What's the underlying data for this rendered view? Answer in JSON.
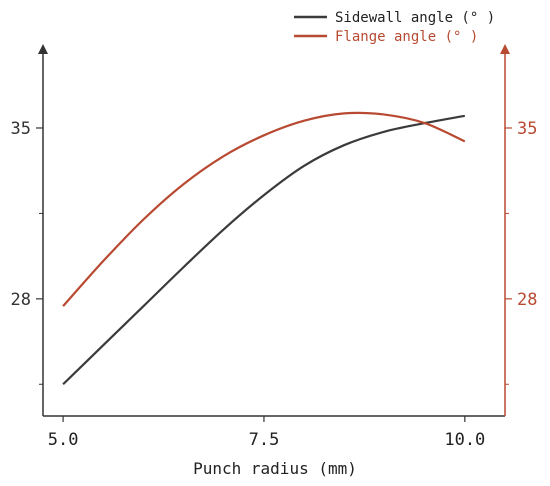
{
  "chart_data": {
    "type": "line",
    "xlabel": "Punch radius (mm)",
    "x_ticks": [
      "5.0",
      "7.5",
      "10.0"
    ],
    "x_tick_values": [
      5.0,
      7.5,
      10.0
    ],
    "xlim": [
      4.75,
      10.5
    ],
    "left_axis": {
      "ylim": [
        23.2,
        38.4
      ],
      "major_ticks": [
        28,
        35
      ],
      "major_tick_labels": [
        "28",
        "35"
      ],
      "minor_ticks": [
        24.5,
        31.5
      ],
      "color": "#333333"
    },
    "right_axis": {
      "ylim": [
        23.2,
        38.4
      ],
      "major_ticks": [
        28,
        35
      ],
      "major_tick_labels": [
        "28",
        "35"
      ],
      "minor_ticks": [
        24.5,
        31.5
      ],
      "color": "#b84a32"
    },
    "legend_position": "top-right",
    "series": [
      {
        "name": "Sidewall angle (° )",
        "axis": "left",
        "color": "#3b3b3b",
        "x": [
          5.0,
          5.5,
          6.0,
          6.5,
          7.0,
          7.5,
          8.0,
          8.5,
          9.0,
          9.5,
          10.0
        ],
        "y": [
          24.5,
          26.1,
          27.7,
          29.3,
          30.85,
          32.25,
          33.45,
          34.3,
          34.85,
          35.2,
          35.5
        ]
      },
      {
        "name": "Flange angle  (° )",
        "axis": "right",
        "color": "#b84a32",
        "x": [
          5.0,
          5.5,
          6.0,
          6.5,
          7.0,
          7.5,
          8.0,
          8.5,
          9.0,
          9.5,
          10.0
        ],
        "y": [
          27.7,
          29.55,
          31.25,
          32.7,
          33.85,
          34.7,
          35.3,
          35.6,
          35.55,
          35.2,
          34.45
        ]
      }
    ]
  }
}
